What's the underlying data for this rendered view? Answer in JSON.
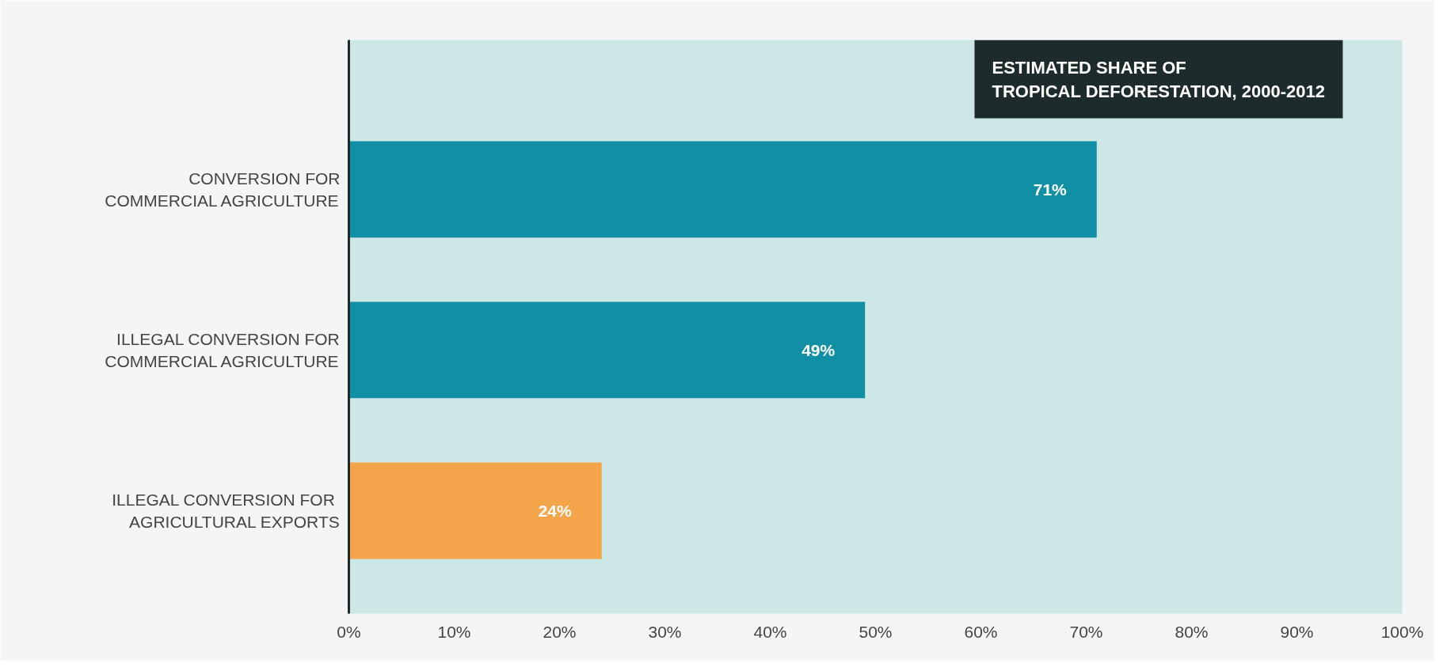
{
  "chart_data": {
    "type": "bar",
    "orientation": "horizontal",
    "title": "ESTIMATED SHARE OF\nTROPICAL DEFORESTATION, 2000-2012",
    "categories": [
      "CONVERSION FOR\nCOMMERCIAL AGRICULTURE",
      "ILLEGAL CONVERSION FOR\nCOMMERCIAL AGRICULTURE",
      "ILLEGAL CONVERSION  FOR\nAGRICULTURAL EXPORTS"
    ],
    "values": [
      71,
      49,
      24
    ],
    "colors": [
      "#118fa5",
      "#118fa5",
      "#f4a54a"
    ],
    "value_labels": [
      "71%",
      "49%",
      "24%"
    ],
    "xlim": [
      0,
      100
    ],
    "xticks": [
      {
        "value": 0,
        "label": "0%"
      },
      {
        "value": 10,
        "label": "10%"
      },
      {
        "value": 20,
        "label": "20%"
      },
      {
        "value": 30,
        "label": "30%"
      },
      {
        "value": 40,
        "label": "40%"
      },
      {
        "value": 50,
        "label": "50%"
      },
      {
        "value": 60,
        "label": "60%"
      },
      {
        "value": 70,
        "label": "70%"
      },
      {
        "value": 80,
        "label": "80%"
      },
      {
        "value": 90,
        "label": "90%"
      },
      {
        "value": 100,
        "label": "100%"
      }
    ],
    "grid": false
  }
}
